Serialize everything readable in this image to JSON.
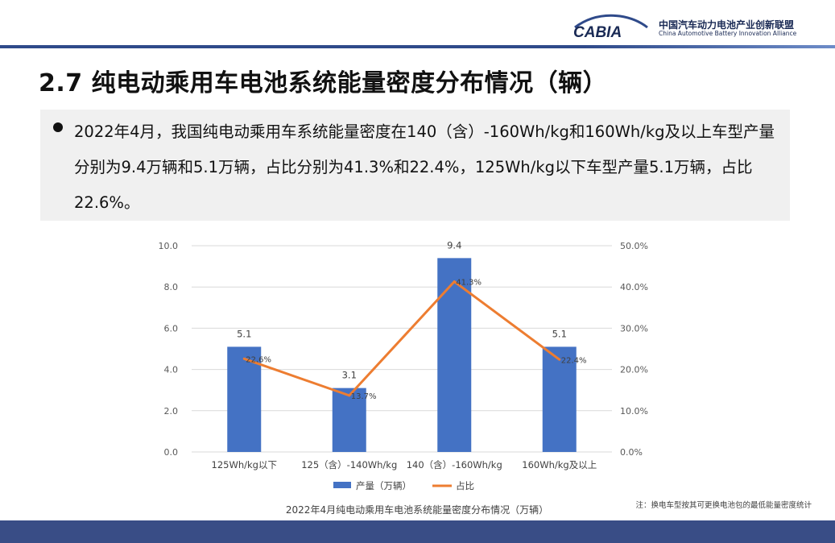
{
  "header": {
    "org_name_cn": "中国汽车动力电池产业创新联盟",
    "org_name_en": "China Automotive Battery Innovation Alliance",
    "logo_text": "CABIA"
  },
  "slide": {
    "title": "2.7 纯电动乘用车电池系统能量密度分布情况（辆）",
    "bullet": "2022年4月，我国纯电动乘用车系统能量密度在140（含）-160Wh/kg和160Wh/kg及以上车型产量分别为9.4万辆和5.1万辆，占比分别为41.3%和22.4%，125Wh/kg以下车型产量5.1万辆，占比22.6%。"
  },
  "colors": {
    "bar": "#4472c4",
    "line": "#ed7d31",
    "band": "#394d86"
  },
  "chart_data": {
    "type": "bar",
    "categories": [
      "125Wh/kg以下",
      "125（含）-140Wh/kg",
      "140（含）-160Wh/kg",
      "160Wh/kg及以上"
    ],
    "series": [
      {
        "name": "产量（万辆）",
        "type": "bar",
        "axis": "left",
        "values": [
          5.1,
          3.1,
          9.4,
          5.1
        ],
        "labels": [
          "5.1",
          "3.1",
          "9.4",
          "5.1"
        ]
      },
      {
        "name": "占比",
        "type": "line",
        "axis": "right",
        "values": [
          22.6,
          13.7,
          41.3,
          22.4
        ],
        "labels": [
          "22.6%",
          "13.7%",
          "41.3%",
          "22.4%"
        ]
      }
    ],
    "ylim": [
      0,
      10
    ],
    "y2lim": [
      0,
      50
    ],
    "yticks": [
      "0.0",
      "2.0",
      "4.0",
      "6.0",
      "8.0",
      "10.0"
    ],
    "y2ticks": [
      "0.0%",
      "10.0%",
      "20.0%",
      "30.0%",
      "40.0%",
      "50.0%"
    ],
    "grid": true,
    "legend": "bottom",
    "caption": "2022年4月纯电动乘用车电池系统能量密度分布情况（万辆）",
    "note": "注：换电车型按其可更换电池包的最低能量密度统计"
  }
}
